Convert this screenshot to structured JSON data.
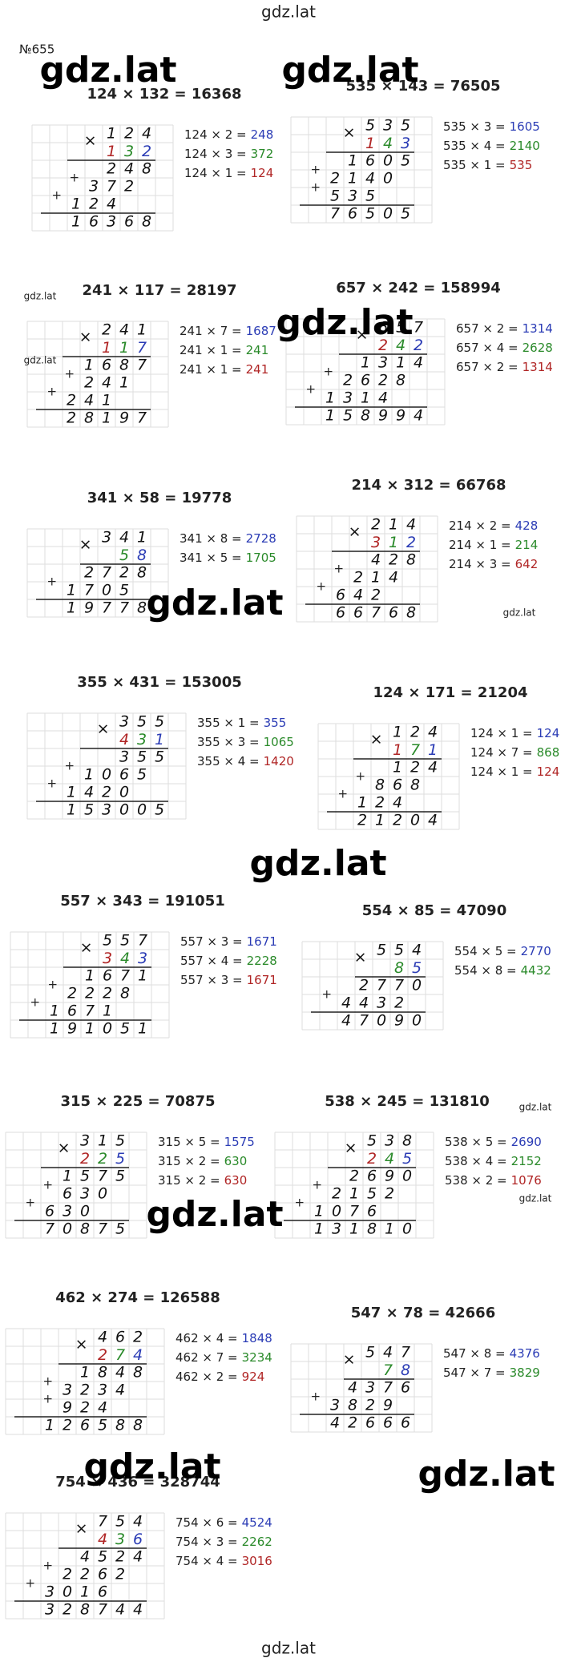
{
  "header": {
    "site": "gdz.lat",
    "number": "№655"
  },
  "colors": [
    "#2b3cb5",
    "#2a8a2a",
    "#b02525"
  ],
  "problems": [
    {
      "title": "124 × 132 = 16368",
      "a": "124",
      "b": "132",
      "partials": [
        "248",
        "372",
        "124"
      ],
      "result": "16368",
      "steps": [
        "124 × 2 =",
        "124 × 3 =",
        "124 × 1 ="
      ]
    },
    {
      "title": "535 × 143 = 76505",
      "a": "535",
      "b": "143",
      "partials": [
        "1605",
        "2140",
        "535"
      ],
      "result": "76505",
      "steps": [
        "535 × 3 =",
        "535 × 4 =",
        "535 × 1 ="
      ]
    },
    {
      "title": "241 × 117 = 28197",
      "a": "241",
      "b": "117",
      "partials": [
        "1687",
        "241",
        "241"
      ],
      "result": "28197",
      "steps": [
        "241 × 7 =",
        "241 × 1 =",
        "241 × 1 ="
      ]
    },
    {
      "title": "657 × 242 = 158994",
      "a": "657",
      "b": "242",
      "partials": [
        "1314",
        "2628",
        "1314"
      ],
      "result": "158994",
      "steps": [
        "657 × 2 =",
        "657 × 4 =",
        "657 × 2 ="
      ]
    },
    {
      "title": "341 × 58 = 19778",
      "a": "341",
      "b": "58",
      "partials": [
        "2728",
        "1705"
      ],
      "result": "19778",
      "steps": [
        "341 × 8 =",
        "341 × 5 ="
      ]
    },
    {
      "title": "214 × 312 = 66768",
      "a": "214",
      "b": "312",
      "partials": [
        "428",
        "214",
        "642"
      ],
      "result": "66768",
      "steps": [
        "214 × 2 =",
        "214 × 1 =",
        "214 × 3 ="
      ]
    },
    {
      "title": "355 × 431 = 153005",
      "a": "355",
      "b": "431",
      "partials": [
        "355",
        "1065",
        "1420"
      ],
      "result": "153005",
      "steps": [
        "355 × 1 =",
        "355 × 3 =",
        "355 × 4 ="
      ]
    },
    {
      "title": "124 × 171 = 21204",
      "a": "124",
      "b": "171",
      "partials": [
        "124",
        "868",
        "124"
      ],
      "result": "21204",
      "steps": [
        "124 × 1 =",
        "124 × 7 =",
        "124 × 1 ="
      ]
    },
    {
      "title": "557 × 343 = 191051",
      "a": "557",
      "b": "343",
      "partials": [
        "1671",
        "2228",
        "1671"
      ],
      "result": "191051",
      "steps": [
        "557 × 3 =",
        "557 × 4 =",
        "557 × 3 ="
      ]
    },
    {
      "title": "554 × 85 = 47090",
      "a": "554",
      "b": "85",
      "partials": [
        "2770",
        "4432"
      ],
      "result": "47090",
      "steps": [
        "554 × 5 =",
        "554 × 8 ="
      ]
    },
    {
      "title": "315 × 225 = 70875",
      "a": "315",
      "b": "225",
      "partials": [
        "1575",
        "630",
        "630"
      ],
      "result": "70875",
      "steps": [
        "315 × 5 =",
        "315 × 2 =",
        "315 × 2 ="
      ]
    },
    {
      "title": "538 × 245 = 131810",
      "a": "538",
      "b": "245",
      "partials": [
        "2690",
        "2152",
        "1076"
      ],
      "result": "131810",
      "steps": [
        "538 × 5 =",
        "538 × 4 =",
        "538 × 2 ="
      ]
    },
    {
      "title": "462 × 274 = 126588",
      "a": "462",
      "b": "274",
      "partials": [
        "1848",
        "3234",
        "924"
      ],
      "result": "126588",
      "steps": [
        "462 × 4 =",
        "462 × 7 =",
        "462 × 2 ="
      ]
    },
    {
      "title": "547 × 78 = 42666",
      "a": "547",
      "b": "78",
      "partials": [
        "4376",
        "3829"
      ],
      "result": "42666",
      "steps": [
        "547 × 8 =",
        "547 × 7 ="
      ]
    },
    {
      "title": "754 × 436 = 328744",
      "a": "754",
      "b": "436",
      "partials": [
        "4524",
        "2262",
        "3016"
      ],
      "result": "328744",
      "steps": [
        "754 × 6 =",
        "754 × 3 =",
        "754 × 4 ="
      ]
    }
  ],
  "watermarks": [
    "gdz.lat",
    "gdz.lat",
    "gdz.lat",
    "gdz.lat",
    "gdz.lat",
    "gdz.lat",
    "gdz.lat",
    "gdz.lat",
    "gdz.lat",
    "gdz.lat",
    "gdz.lat",
    "gdz.lat",
    "gdz.lat"
  ],
  "footer": "gdz.lat"
}
